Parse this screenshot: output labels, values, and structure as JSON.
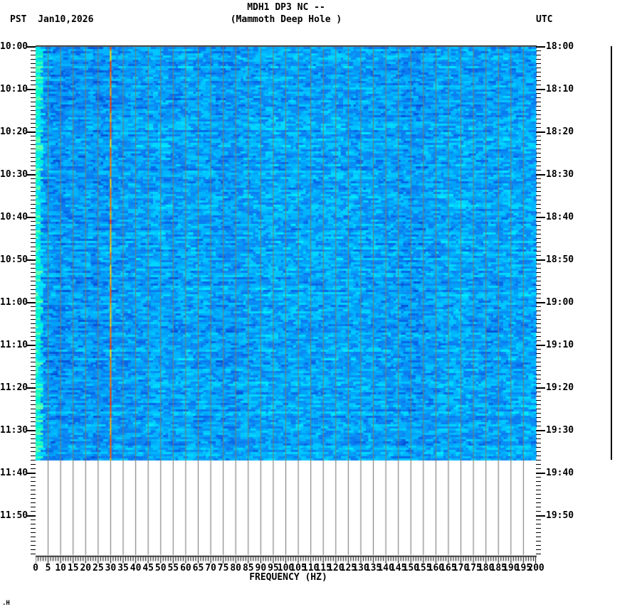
{
  "header": {
    "tz_left": "PST",
    "date": "Jan10,2026",
    "title": "MDH1 DP3 NC --",
    "subtitle": "(Mammoth Deep Hole )",
    "tz_right": "UTC"
  },
  "chart_data": {
    "type": "heatmap",
    "subtype": "seismic-spectrogram",
    "title": "MDH1 DP3 NC --",
    "subtitle": "(Mammoth Deep Hole )",
    "xlabel": "FREQUENCY (HZ)",
    "xlim": [
      0,
      200
    ],
    "x_major_step_hz": 5,
    "x_minor_step_hz": 1,
    "x_axis": {
      "tick_labels": [
        "0",
        "5",
        "10",
        "15",
        "20",
        "25",
        "30",
        "35",
        "40",
        "45",
        "50",
        "55",
        "60",
        "65",
        "70",
        "75",
        "80",
        "85",
        "90",
        "95",
        "100",
        "105",
        "110",
        "115",
        "120",
        "125",
        "130",
        "135",
        "140",
        "145",
        "150",
        "155",
        "160",
        "165",
        "170",
        "175",
        "180",
        "185",
        "190",
        "195",
        "200"
      ]
    },
    "y_axis_left": {
      "timezone": "PST",
      "tick_labels": [
        "10:00",
        "10:10",
        "10:20",
        "10:30",
        "10:40",
        "10:50",
        "11:00",
        "11:10",
        "11:20",
        "11:30",
        "11:40",
        "11:50"
      ],
      "major_step_minutes": 10,
      "minor_step_minutes": 1
    },
    "y_axis_right": {
      "timezone": "UTC",
      "tick_labels": [
        "18:00",
        "18:10",
        "18:20",
        "18:30",
        "18:40",
        "18:50",
        "19:00",
        "19:10",
        "19:20",
        "19:30",
        "19:40",
        "19:50"
      ]
    },
    "time_axis": {
      "axis_start_pst": "10:00",
      "axis_span_minutes": 120,
      "data_start_pst": "10:00",
      "data_end_pst": "11:37",
      "data_start_utc": "18:00",
      "data_end_utc": "19:37"
    },
    "grid": {
      "step_hz": 5,
      "on": true
    },
    "features": [
      {
        "name": "narrowband-signal",
        "frequency_hz": 30,
        "description": "persistent thin orange/red vertical line across entire recorded interval"
      },
      {
        "name": "low-frequency-band",
        "frequency_hz_range": [
          0,
          2
        ],
        "description": "bright cyan-green band along left edge of spectrogram"
      },
      {
        "name": "background",
        "description": "broadband blue noise mosaic from 0-200 Hz, 10:00 to 11:37 PST; blank below end of data"
      },
      {
        "name": "amplitude-reference-line",
        "description": "straight black vertical line right of plot spanning the recorded interval"
      }
    ],
    "colors": {
      "background": "#ffffff",
      "text": "#000000",
      "spectral_palette": [
        "#0454d8",
        "#0668e8",
        "#0a7cf0",
        "#0a8cf4",
        "#00a2f8",
        "#00b4fd",
        "#00c6ff",
        "#00d8ff",
        "#00eaff"
      ],
      "low_freq_band_palette": [
        "#00f8c8",
        "#2cffc0",
        "#00ecd8",
        "#5affb4",
        "#00e0f0"
      ],
      "narrowband_line_palette": [
        "#ff3c00",
        "#ff7800",
        "#ffa800",
        "#ffd800",
        "#ff5a00"
      ],
      "grid_over_data": "#7e7e68",
      "grid_below_data": "#6e6e6e"
    }
  },
  "footer": {
    "corner_glyph": ".H"
  }
}
